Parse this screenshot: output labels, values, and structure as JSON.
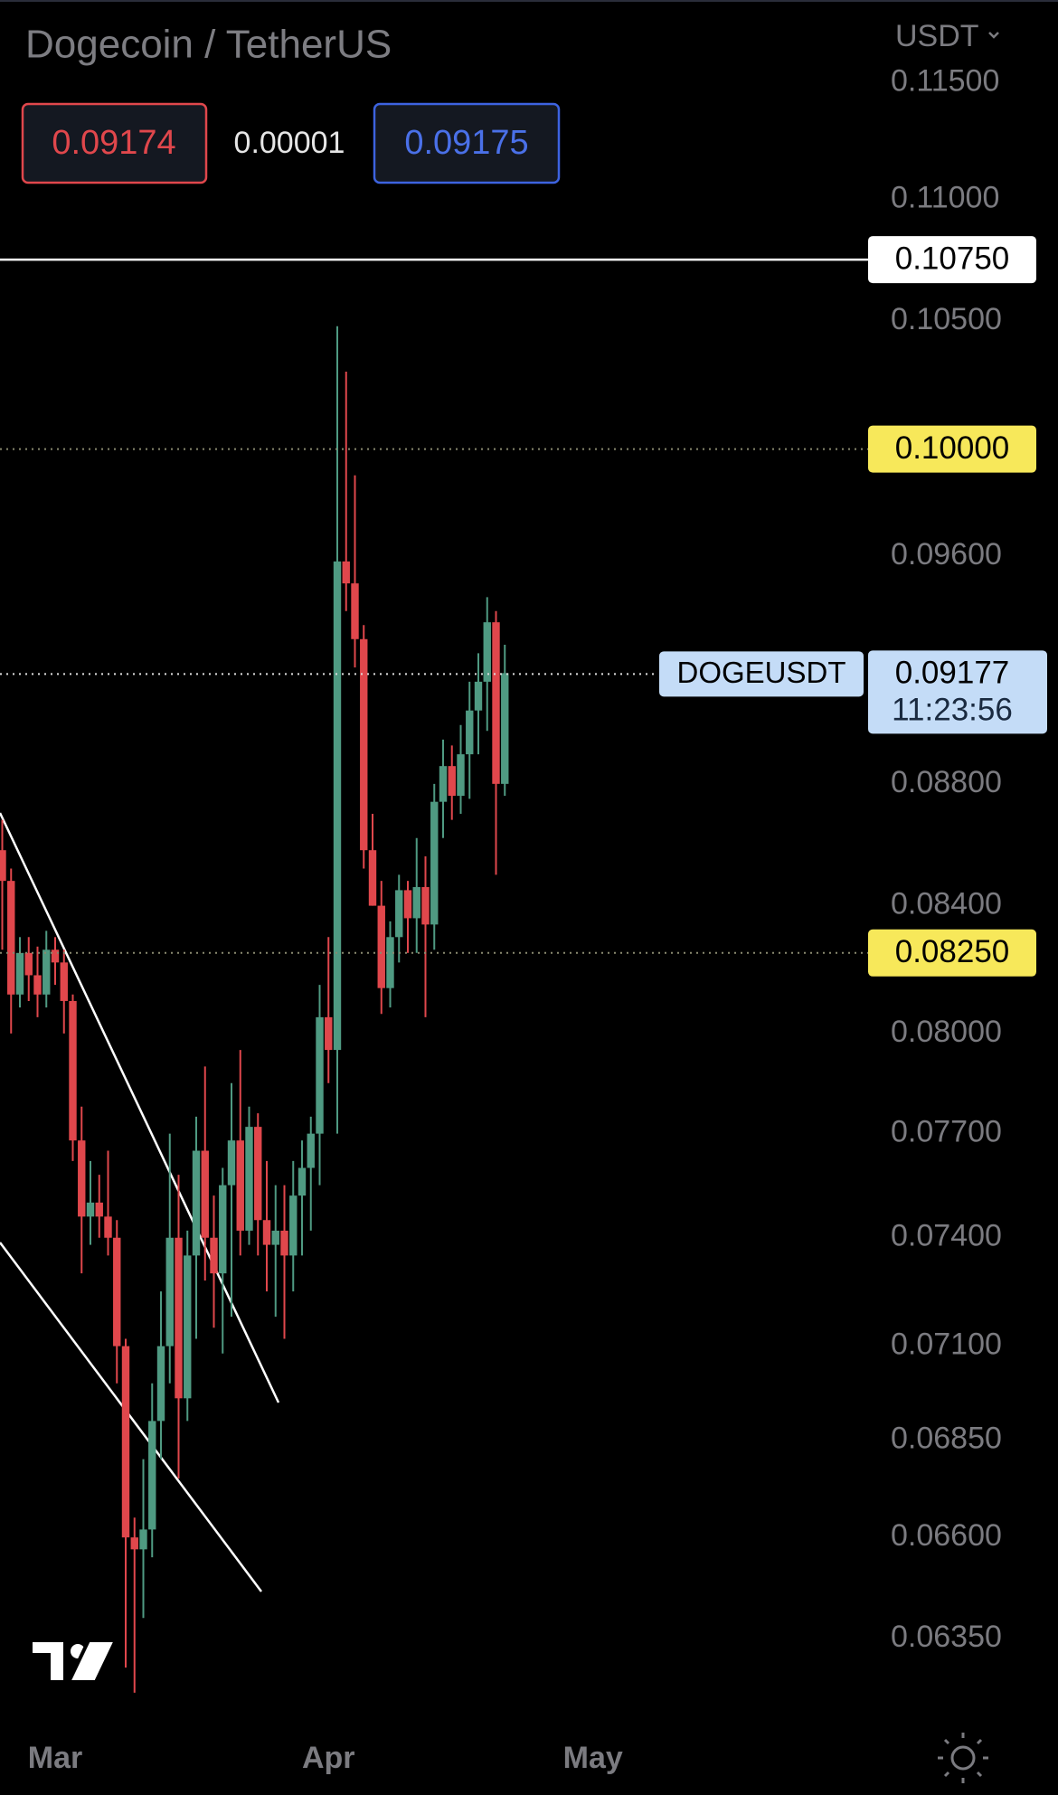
{
  "chart_data": {
    "type": "candlestick",
    "title": "Dogecoin / TetherUS",
    "bid": "0.09174",
    "spread": "0.00001",
    "ask": "0.09175",
    "currency": "USDT",
    "log_scale": true,
    "grid": false,
    "up_color": "#4f9a82",
    "down_color": "#e0474c",
    "categories": [
      null,
      null,
      null,
      null,
      null,
      null,
      null,
      null,
      null,
      null,
      null,
      null,
      null,
      null,
      null,
      null,
      null,
      null,
      null,
      null,
      null,
      null,
      null,
      null,
      null,
      null,
      null,
      null,
      null,
      null,
      null,
      null,
      null,
      null,
      null,
      null,
      null,
      null,
      null,
      null,
      null,
      null,
      null,
      null,
      null,
      null,
      null,
      null,
      null,
      null,
      null,
      null,
      null,
      null,
      null,
      null,
      null,
      null
    ],
    "open": [
      0.0858,
      0.0848,
      0.0812,
      0.0825,
      0.0818,
      0.0812,
      0.0826,
      0.0822,
      0.081,
      0.0768,
      0.0746,
      0.075,
      0.0746,
      0.074,
      0.071,
      0.066,
      0.0657,
      0.0662,
      0.069,
      0.071,
      0.074,
      0.0696,
      0.0735,
      0.0765,
      0.074,
      0.073,
      0.0755,
      0.0768,
      0.0742,
      0.0772,
      0.0745,
      0.0738,
      0.0742,
      0.0735,
      0.0752,
      0.076,
      0.077,
      0.0805,
      0.0795,
      0.0958,
      0.095,
      0.093,
      0.0858,
      0.084,
      0.0814,
      0.083,
      0.0845,
      0.0836,
      0.0846,
      0.0834,
      0.0874,
      0.0886,
      0.0876,
      0.089,
      0.0905,
      0.0915,
      0.0936,
      0.088
    ],
    "high": [
      0.0868,
      0.0852,
      0.083,
      0.083,
      0.0827,
      0.0832,
      0.083,
      0.0826,
      0.0812,
      0.0778,
      0.0762,
      0.0758,
      0.0765,
      0.0745,
      0.0712,
      0.0665,
      0.068,
      0.07,
      0.0725,
      0.077,
      0.0758,
      0.0742,
      0.0775,
      0.079,
      0.0752,
      0.076,
      0.0785,
      0.0795,
      0.0778,
      0.0776,
      0.0762,
      0.0755,
      0.0755,
      0.0762,
      0.0768,
      0.0775,
      0.0815,
      0.083,
      0.1048,
      0.103,
      0.099,
      0.0935,
      0.087,
      0.0848,
      0.0835,
      0.085,
      0.0848,
      0.0862,
      0.0856,
      0.088,
      0.0895,
      0.0893,
      0.09,
      0.0915,
      0.0925,
      0.0945,
      0.094,
      0.0928
    ],
    "low": [
      0.0826,
      0.08,
      0.0808,
      0.081,
      0.0805,
      0.0808,
      0.0815,
      0.08,
      0.0762,
      0.073,
      0.0738,
      0.074,
      0.0735,
      0.07,
      0.0628,
      0.0622,
      0.064,
      0.0655,
      0.068,
      0.07,
      0.0675,
      0.069,
      0.0712,
      0.0728,
      0.0715,
      0.0708,
      0.0718,
      0.0735,
      0.0738,
      0.0735,
      0.0725,
      0.0718,
      0.0712,
      0.0725,
      0.0735,
      0.0742,
      0.0755,
      0.0785,
      0.077,
      0.094,
      0.092,
      0.0852,
      0.084,
      0.0806,
      0.0808,
      0.0822,
      0.0825,
      0.0825,
      0.0805,
      0.0826,
      0.0862,
      0.0868,
      0.087,
      0.0875,
      0.089,
      0.0898,
      0.085,
      0.0876
    ],
    "close": [
      0.0848,
      0.0812,
      0.0825,
      0.0818,
      0.0812,
      0.0826,
      0.0822,
      0.081,
      0.0768,
      0.0746,
      0.075,
      0.0746,
      0.074,
      0.071,
      0.066,
      0.0657,
      0.0662,
      0.069,
      0.071,
      0.074,
      0.0696,
      0.0735,
      0.0765,
      0.074,
      0.073,
      0.0755,
      0.0768,
      0.0742,
      0.0772,
      0.0745,
      0.0738,
      0.0742,
      0.0735,
      0.0752,
      0.076,
      0.077,
      0.0805,
      0.0795,
      0.0958,
      0.095,
      0.093,
      0.0858,
      0.084,
      0.0814,
      0.083,
      0.0845,
      0.0836,
      0.0846,
      0.0834,
      0.0874,
      0.0886,
      0.0876,
      0.089,
      0.0905,
      0.0915,
      0.0936,
      0.088,
      0.0918
    ],
    "xticks": [
      {
        "value": 6,
        "label": "Mar"
      },
      {
        "value": 37,
        "label": "Apr"
      },
      {
        "value": 67,
        "label": "May"
      }
    ],
    "ylim": [
      0.0616,
      0.1187
    ],
    "yticks": [
      {
        "value": 0.115,
        "label": "0.11500"
      },
      {
        "value": 0.11,
        "label": "0.11000"
      },
      {
        "value": 0.105,
        "label": "0.10500"
      },
      {
        "value": 0.096,
        "label": "0.09600"
      },
      {
        "value": 0.088,
        "label": "0.08800"
      },
      {
        "value": 0.084,
        "label": "0.08400"
      },
      {
        "value": 0.08,
        "label": "0.08000"
      },
      {
        "value": 0.077,
        "label": "0.07700"
      },
      {
        "value": 0.074,
        "label": "0.07400"
      },
      {
        "value": 0.071,
        "label": "0.07100"
      },
      {
        "value": 0.0685,
        "label": "0.06850"
      },
      {
        "value": 0.066,
        "label": "0.06600"
      },
      {
        "value": 0.0635,
        "label": "0.06350"
      }
    ],
    "price_lines": [
      {
        "value": 0.1075,
        "label": "0.10750",
        "color": "#ffffff",
        "line": "solid"
      },
      {
        "value": 0.1,
        "label": "0.10000",
        "color": "#f7e85a",
        "line": "dotted"
      },
      {
        "value": 0.0825,
        "label": "0.08250",
        "color": "#f7e85a",
        "line": "dotted"
      }
    ],
    "last_price": {
      "value": 0.09177,
      "label": "0.09177",
      "symbol": "DOGEUSDT",
      "countdown": "11:23:56",
      "color": "#c4dcf7"
    }
  }
}
